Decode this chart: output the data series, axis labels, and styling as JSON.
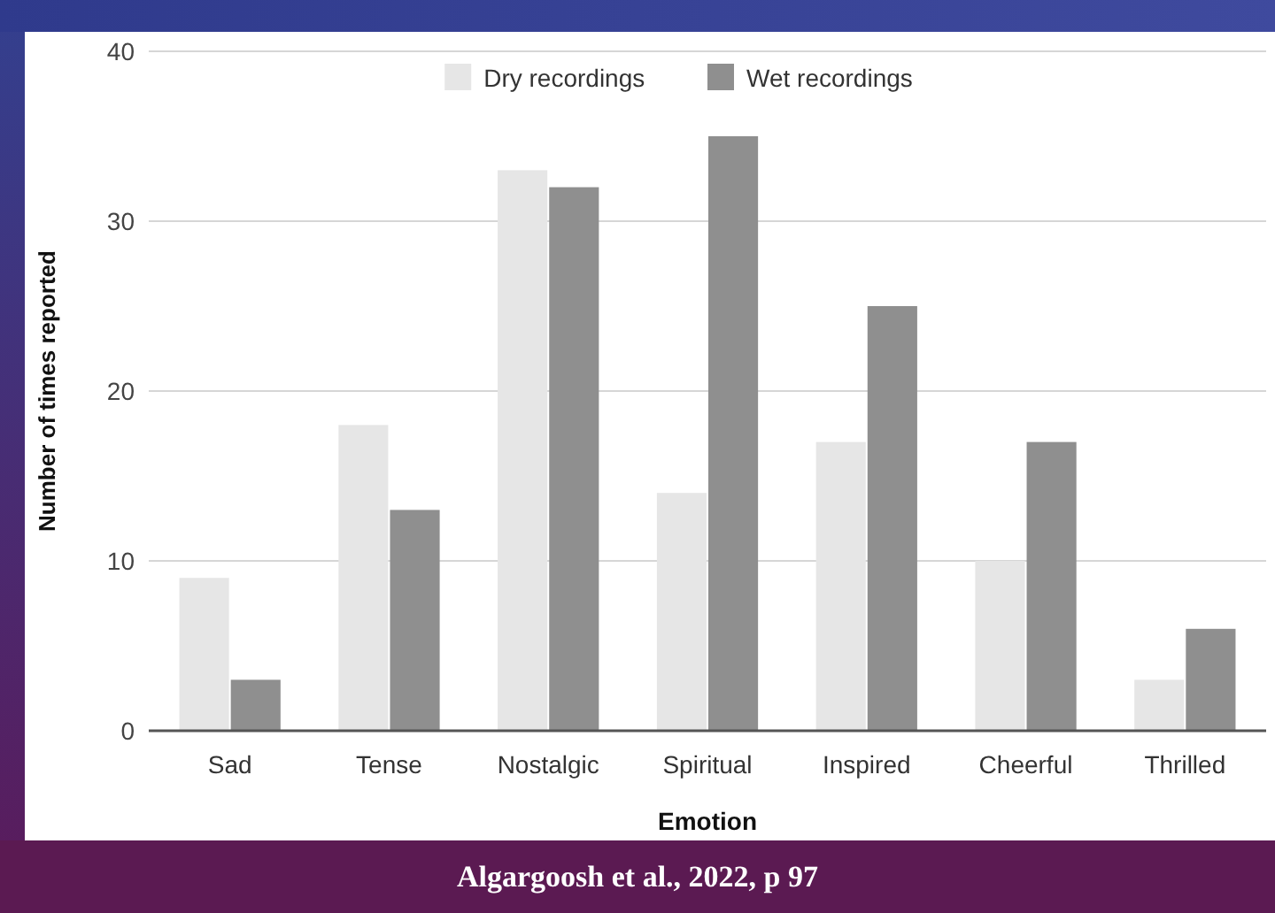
{
  "chart_data": {
    "type": "bar",
    "xlabel": "Emotion",
    "ylabel": "Number of times reported",
    "categories": [
      "Sad",
      "Tense",
      "Nostalgic",
      "Spiritual",
      "Inspired",
      "Cheerful",
      "Thrilled"
    ],
    "series": [
      {
        "name": "Dry recordings",
        "color": "#e6e6e6",
        "values": [
          9,
          18,
          33,
          14,
          17,
          10,
          3
        ]
      },
      {
        "name": "Wet recordings",
        "color": "#8f8f8f",
        "values": [
          3,
          13,
          32,
          35,
          25,
          17,
          6
        ]
      }
    ],
    "ylim": [
      0,
      40
    ],
    "yticks": [
      0,
      10,
      20,
      30,
      40
    ],
    "grid": "y",
    "legend": "top",
    "annotations": [
      "Algargoosh et al., 2022, p 97"
    ]
  }
}
